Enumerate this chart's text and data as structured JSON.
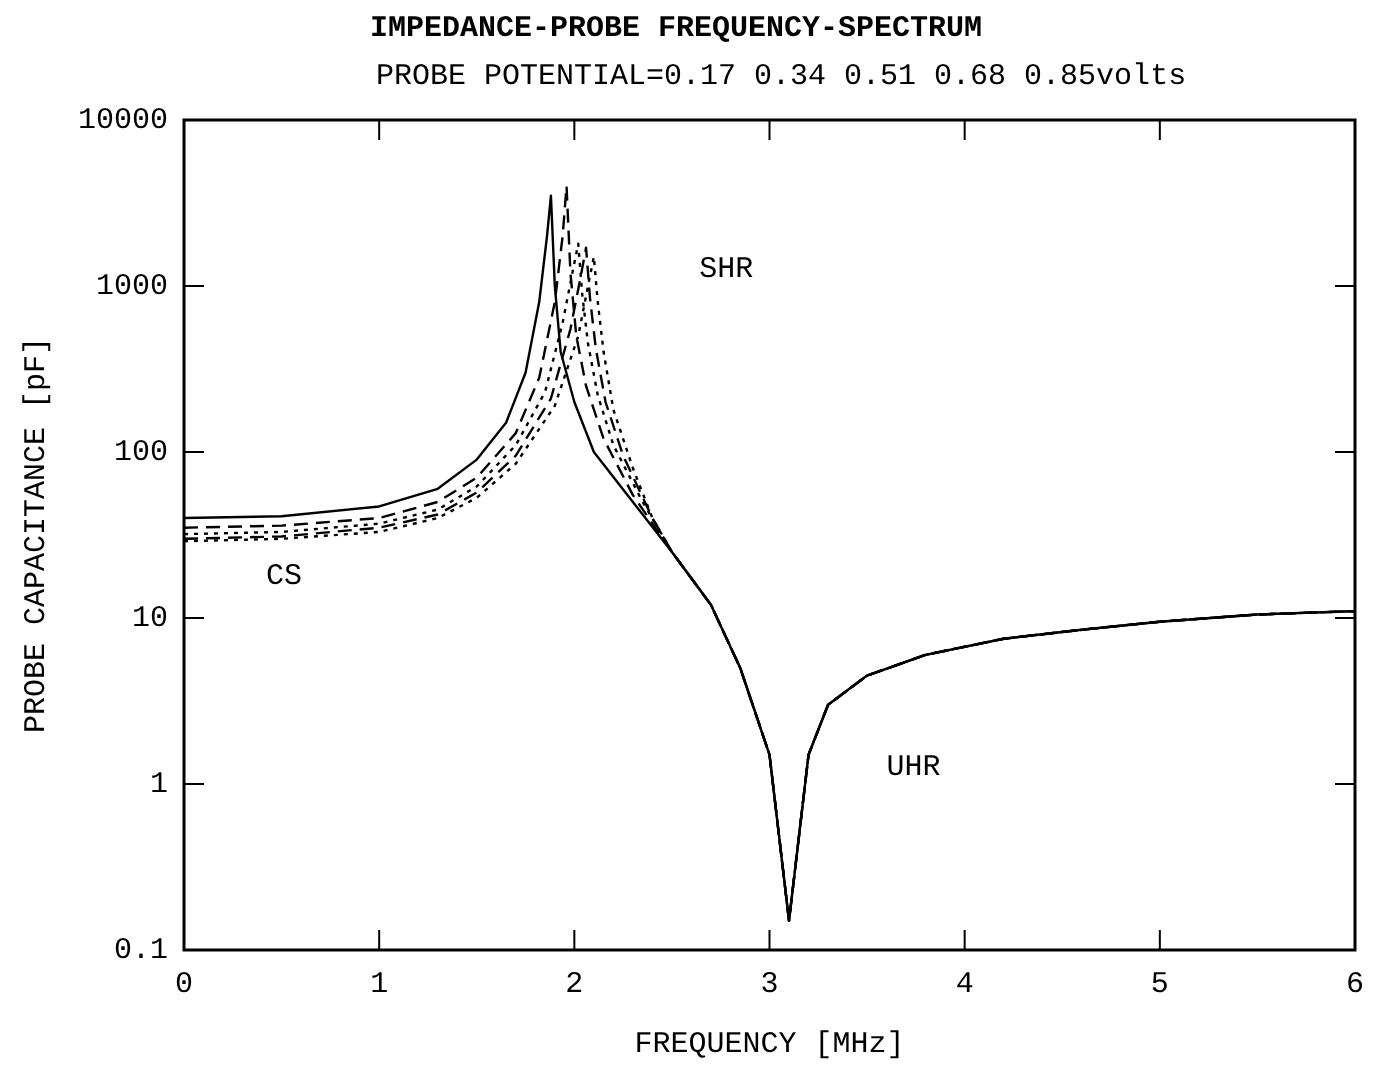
{
  "chart_data": {
    "type": "line",
    "title": "IMPEDANCE-PROBE FREQUENCY-SPECTRUM",
    "subtitle": "PROBE POTENTIAL=0.17 0.34 0.51 0.68 0.85volts",
    "xlabel": "FREQUENCY [MHz]",
    "ylabel": "PROBE CAPACITANCE [pF]",
    "log": "y",
    "xlim": [
      0,
      6
    ],
    "xticks": [
      0,
      1,
      2,
      3,
      4,
      5,
      6
    ],
    "ylim": [
      0.1,
      10000
    ],
    "yticks": [
      0.1,
      1,
      10,
      100,
      1000,
      10000
    ],
    "grid": false,
    "legend": false,
    "marker": "none",
    "annotations": [
      "CS",
      "SHR",
      "UHR"
    ],
    "series": [
      {
        "color": "#000000",
        "line_style": "solid",
        "x": [
          0,
          0.5,
          1.0,
          1.3,
          1.5,
          1.65,
          1.75,
          1.82,
          1.86,
          1.88,
          1.9,
          1.93,
          2.0,
          2.1,
          2.3,
          2.5,
          2.7,
          2.85,
          3.0,
          3.1,
          3.2,
          3.3,
          3.5,
          3.8,
          4.2,
          4.6,
          5.0,
          5.5,
          6.0
        ],
        "values": [
          40,
          41,
          47,
          60,
          90,
          150,
          300,
          800,
          2000,
          3500,
          1000,
          400,
          200,
          100,
          50,
          25,
          12,
          5,
          1.5,
          0.15,
          1.5,
          3,
          4.5,
          6,
          7.5,
          8.5,
          9.5,
          10.5,
          11
        ]
      },
      {
        "color": "#000000",
        "line_style": "dashed",
        "x": [
          0,
          0.5,
          1.0,
          1.3,
          1.5,
          1.7,
          1.82,
          1.9,
          1.94,
          1.96,
          1.98,
          2.01,
          2.06,
          2.15,
          2.3,
          2.5,
          2.7,
          2.85,
          3.0,
          3.1,
          3.2,
          3.3,
          3.5,
          3.8,
          4.2,
          4.6,
          5.0,
          5.5,
          6.0
        ],
        "values": [
          35,
          36,
          40,
          50,
          70,
          130,
          280,
          800,
          2000,
          4000,
          1200,
          500,
          250,
          120,
          55,
          25,
          12,
          5,
          1.5,
          0.15,
          1.5,
          3,
          4.5,
          6,
          7.5,
          8.5,
          9.5,
          10.5,
          11
        ]
      },
      {
        "color": "#000000",
        "line_style": "dotted",
        "x": [
          0,
          0.5,
          1.0,
          1.3,
          1.5,
          1.7,
          1.85,
          1.94,
          1.99,
          2.02,
          2.04,
          2.07,
          2.12,
          2.2,
          2.35,
          2.5,
          2.7,
          2.85,
          3.0,
          3.1,
          3.2,
          3.3,
          3.5,
          3.8,
          4.2,
          4.6,
          5.0,
          5.5,
          6.0
        ],
        "values": [
          32,
          33,
          37,
          45,
          62,
          110,
          230,
          600,
          1200,
          1800,
          900,
          450,
          220,
          110,
          50,
          25,
          12,
          5,
          1.5,
          0.15,
          1.5,
          3,
          4.5,
          6,
          7.5,
          8.5,
          9.5,
          10.5,
          11
        ]
      },
      {
        "color": "#000000",
        "line_style": "dashed",
        "x": [
          0,
          0.5,
          1.0,
          1.3,
          1.5,
          1.7,
          1.88,
          1.98,
          2.03,
          2.06,
          2.08,
          2.11,
          2.16,
          2.25,
          2.4,
          2.5,
          2.7,
          2.85,
          3.0,
          3.1,
          3.2,
          3.3,
          3.5,
          3.8,
          4.2,
          4.6,
          5.0,
          5.5,
          6.0
        ],
        "values": [
          30,
          31,
          35,
          42,
          57,
          95,
          210,
          550,
          1100,
          1700,
          850,
          420,
          200,
          95,
          40,
          25,
          12,
          5,
          1.5,
          0.15,
          1.5,
          3,
          4.5,
          6,
          7.5,
          8.5,
          9.5,
          10.5,
          11
        ]
      },
      {
        "color": "#000000",
        "line_style": "dotted",
        "x": [
          0,
          0.5,
          1.0,
          1.3,
          1.5,
          1.7,
          1.9,
          2.02,
          2.07,
          2.1,
          2.12,
          2.15,
          2.2,
          2.3,
          2.4,
          2.5,
          2.7,
          2.85,
          3.0,
          3.1,
          3.2,
          3.3,
          3.5,
          3.8,
          4.2,
          4.6,
          5.0,
          5.5,
          6.0
        ],
        "values": [
          29,
          30,
          33,
          40,
          53,
          85,
          190,
          500,
          1000,
          1500,
          800,
          400,
          180,
          80,
          40,
          25,
          12,
          5,
          1.5,
          0.15,
          1.5,
          3,
          4.5,
          6,
          7.5,
          8.5,
          9.5,
          10.5,
          11
        ]
      }
    ]
  }
}
